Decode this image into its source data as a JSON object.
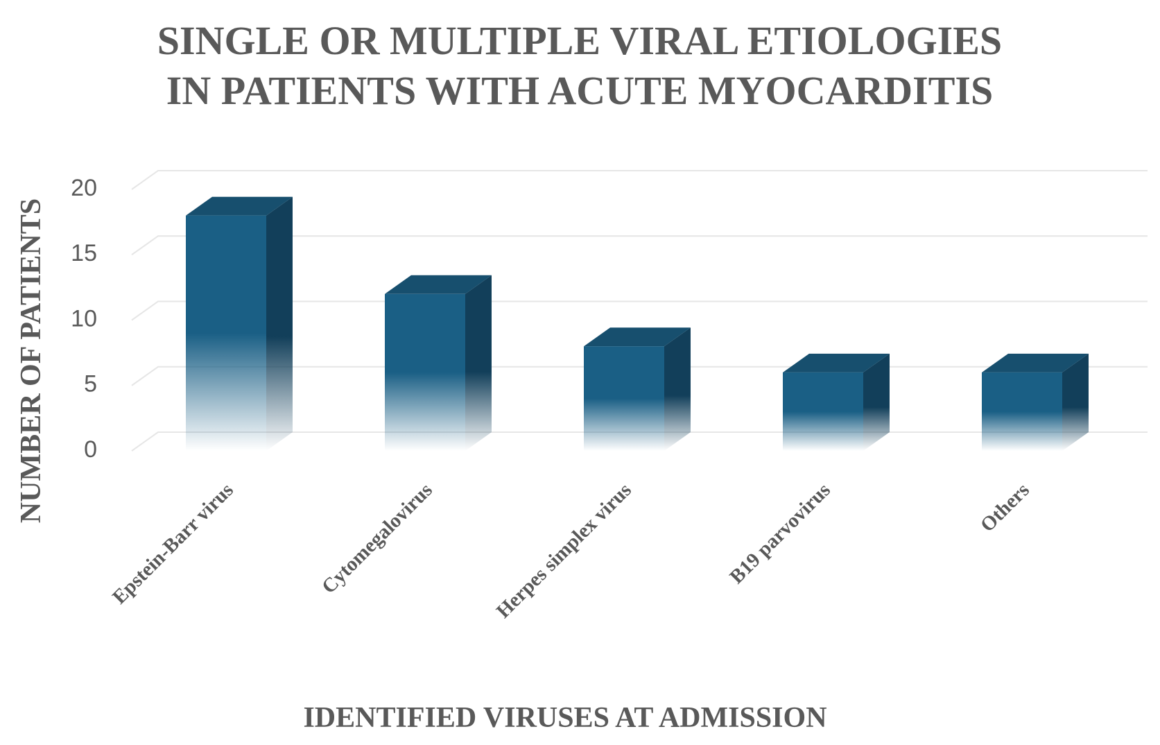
{
  "chart_data": {
    "type": "bar3d",
    "title": [
      "SINGLE OR MULTIPLE VIRAL ETIOLOGIES",
      "IN PATIENTS WITH ACUTE MYOCARDITIS"
    ],
    "x_label": "IDENTIFIED VIRUSES AT ADMISSION",
    "y_label": "NUMBER OF PATIENTS",
    "categories": [
      "Epstein-Barr virus",
      "Cytomegalovirus",
      "Herpes simplex virus",
      "B19 parvovirus",
      "Others"
    ],
    "values": [
      18,
      12,
      8,
      6,
      6
    ],
    "color": "#1a5f85",
    "ylim": [
      0,
      20
    ],
    "yticks": [
      0,
      5,
      10,
      15,
      20
    ],
    "grid": true
  }
}
